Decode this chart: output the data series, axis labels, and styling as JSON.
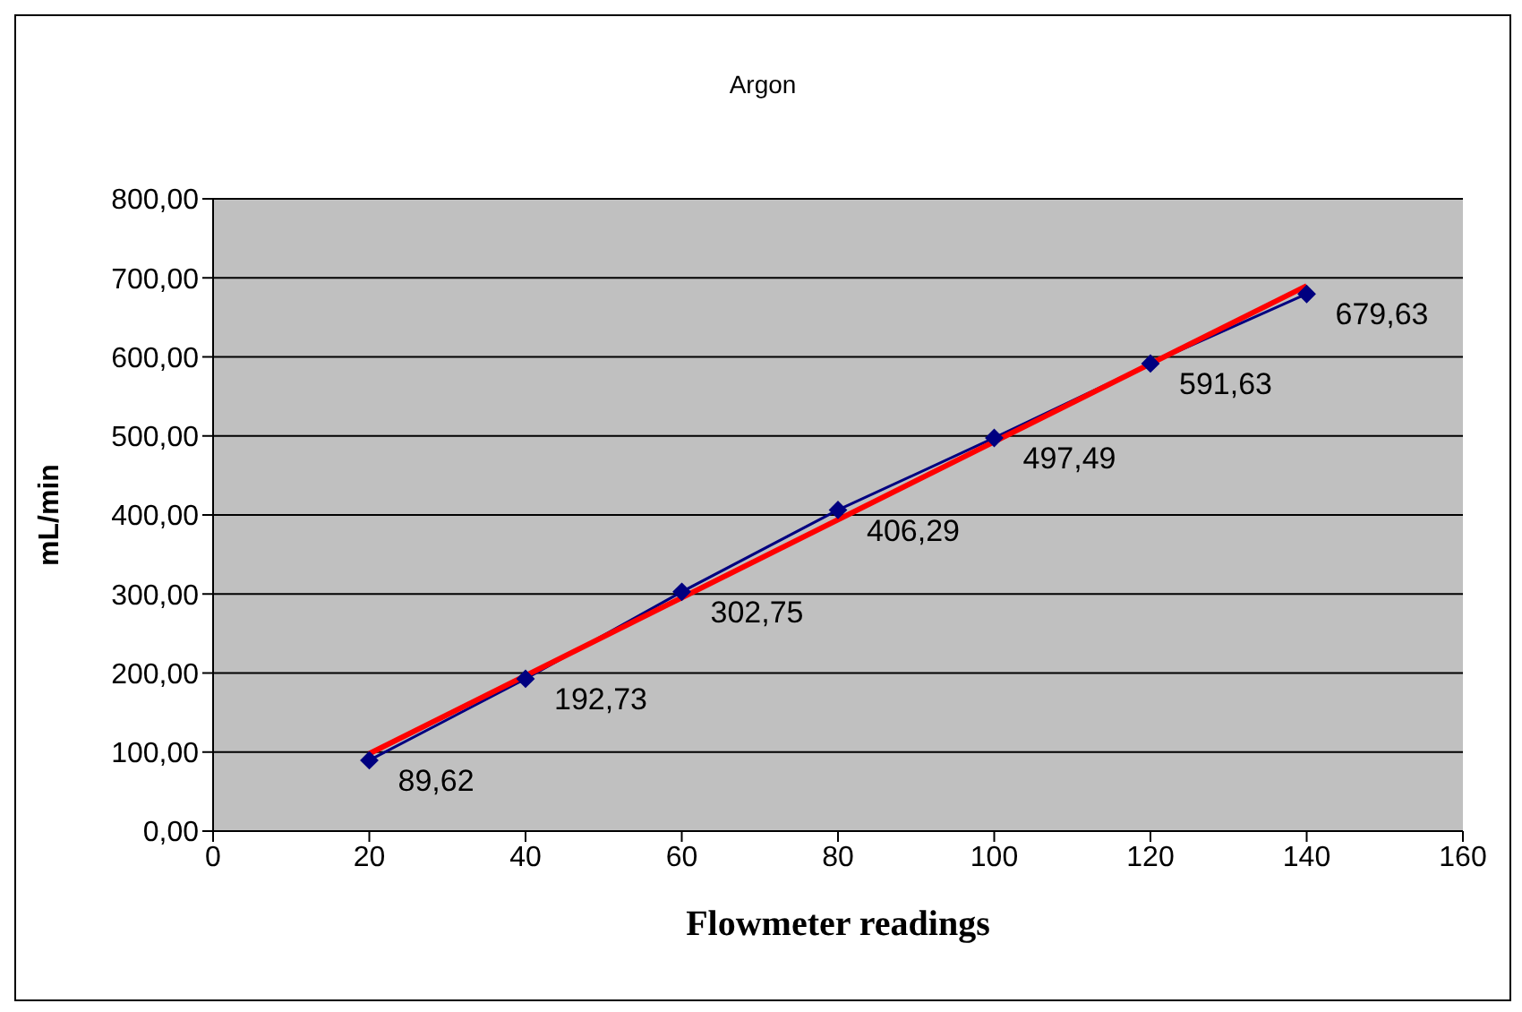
{
  "chart_data": {
    "type": "line",
    "title": "Argon",
    "xlabel": "Flowmeter readings",
    "ylabel": "mL/min",
    "x": [
      20,
      40,
      60,
      80,
      100,
      120,
      140
    ],
    "series": [
      {
        "type": "line",
        "color": "#000080",
        "marker": "diamond",
        "values": [
          89.62,
          192.73,
          302.75,
          406.29,
          497.49,
          591.63,
          679.63
        ],
        "value_labels": [
          "89,62",
          "192,73",
          "302,75",
          "406,29",
          "497,49",
          "591,63",
          "679,63"
        ]
      },
      {
        "type": "line",
        "color": "#ff0000",
        "marker": "none",
        "x": [
          20,
          140
        ],
        "values": [
          98,
          690
        ]
      }
    ],
    "xlim": [
      0,
      160
    ],
    "xticks": [
      0,
      20,
      40,
      60,
      80,
      100,
      120,
      140,
      160
    ],
    "ylim": [
      0,
      800
    ],
    "yticks": [
      {
        "value": 0,
        "label": "0,00"
      },
      {
        "value": 100,
        "label": "100,00"
      },
      {
        "value": 200,
        "label": "200,00"
      },
      {
        "value": 300,
        "label": "300,00"
      },
      {
        "value": 400,
        "label": "400,00"
      },
      {
        "value": 500,
        "label": "500,00"
      },
      {
        "value": 600,
        "label": "600,00"
      },
      {
        "value": 700,
        "label": "700,00"
      },
      {
        "value": 800,
        "label": "800,00"
      }
    ],
    "grid": "y"
  }
}
